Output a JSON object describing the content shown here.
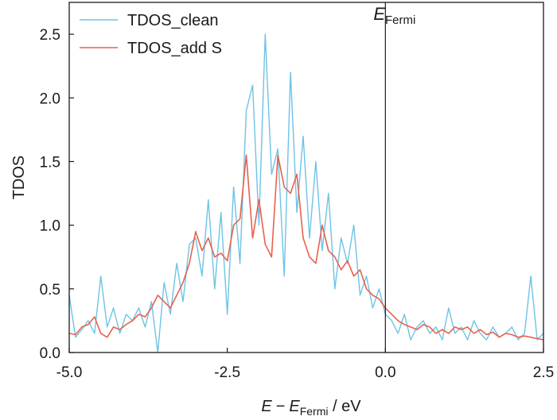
{
  "chart_data": {
    "type": "line",
    "title": "",
    "xlabel_main": "E",
    "xlabel_ref": "E",
    "xlabel_ref_sub": "Fermi",
    "xlabel_unit": " / eV",
    "xlabel_minus": "−",
    "ylabel": "TDOS",
    "xlim": [
      -5.0,
      2.5
    ],
    "ylim": [
      0.0,
      2.75
    ],
    "xticks": [
      -5.0,
      -2.5,
      0.0,
      2.5
    ],
    "xtick_labels": [
      "-5.0",
      "-2.5",
      "0.0",
      "2.5"
    ],
    "yticks": [
      0.0,
      0.5,
      1.0,
      1.5,
      2.0,
      2.5
    ],
    "ytick_labels": [
      "0.0",
      "0.5",
      "1.0",
      "1.5",
      "2.0",
      "2.5"
    ],
    "grid": false,
    "legend_position": "top-left",
    "annotation": {
      "text": "E",
      "sub": "Fermi",
      "x": 0.0,
      "y": 2.75
    },
    "series": [
      {
        "name": "TDOS_clean",
        "color": "#6ec3e6",
        "x": [
          -5.0,
          -4.9,
          -4.8,
          -4.7,
          -4.6,
          -4.5,
          -4.4,
          -4.3,
          -4.2,
          -4.1,
          -4.0,
          -3.9,
          -3.8,
          -3.7,
          -3.6,
          -3.5,
          -3.4,
          -3.3,
          -3.2,
          -3.1,
          -3.0,
          -2.9,
          -2.8,
          -2.7,
          -2.6,
          -2.5,
          -2.4,
          -2.3,
          -2.2,
          -2.1,
          -2.0,
          -1.9,
          -1.8,
          -1.7,
          -1.6,
          -1.5,
          -1.4,
          -1.3,
          -1.2,
          -1.1,
          -1.0,
          -0.9,
          -0.8,
          -0.7,
          -0.6,
          -0.5,
          -0.4,
          -0.3,
          -0.2,
          -0.1,
          0.0,
          0.1,
          0.2,
          0.3,
          0.4,
          0.5,
          0.6,
          0.7,
          0.8,
          0.9,
          1.0,
          1.1,
          1.2,
          1.3,
          1.4,
          1.5,
          1.6,
          1.7,
          1.8,
          1.9,
          2.0,
          2.1,
          2.2,
          2.3,
          2.4,
          2.5
        ],
        "y": [
          0.45,
          0.12,
          0.18,
          0.25,
          0.15,
          0.6,
          0.2,
          0.35,
          0.15,
          0.3,
          0.25,
          0.35,
          0.2,
          0.4,
          0.0,
          0.55,
          0.3,
          0.7,
          0.4,
          0.85,
          0.9,
          0.6,
          1.2,
          0.5,
          1.1,
          0.3,
          1.3,
          0.7,
          1.9,
          2.1,
          1.0,
          2.5,
          1.4,
          1.6,
          0.6,
          2.2,
          1.1,
          1.7,
          0.9,
          1.5,
          0.8,
          1.25,
          0.5,
          0.9,
          0.7,
          1.0,
          0.45,
          0.6,
          0.35,
          0.5,
          0.3,
          0.25,
          0.15,
          0.3,
          0.1,
          0.2,
          0.25,
          0.15,
          0.2,
          0.1,
          0.35,
          0.15,
          0.2,
          0.1,
          0.25,
          0.15,
          0.1,
          0.2,
          0.12,
          0.15,
          0.2,
          0.1,
          0.15,
          0.6,
          0.1,
          0.15
        ]
      },
      {
        "name": "TDOS_add S",
        "color": "#e8614d",
        "x": [
          -5.0,
          -4.9,
          -4.8,
          -4.7,
          -4.6,
          -4.5,
          -4.4,
          -4.3,
          -4.2,
          -4.1,
          -4.0,
          -3.9,
          -3.8,
          -3.7,
          -3.6,
          -3.5,
          -3.4,
          -3.3,
          -3.2,
          -3.1,
          -3.0,
          -2.9,
          -2.8,
          -2.7,
          -2.6,
          -2.5,
          -2.4,
          -2.3,
          -2.2,
          -2.1,
          -2.0,
          -1.9,
          -1.8,
          -1.7,
          -1.6,
          -1.5,
          -1.4,
          -1.3,
          -1.2,
          -1.1,
          -1.0,
          -0.9,
          -0.8,
          -0.7,
          -0.6,
          -0.5,
          -0.4,
          -0.3,
          -0.2,
          -0.1,
          0.0,
          0.1,
          0.2,
          0.3,
          0.4,
          0.5,
          0.6,
          0.7,
          0.8,
          0.9,
          1.0,
          1.1,
          1.2,
          1.3,
          1.4,
          1.5,
          1.6,
          1.7,
          1.8,
          1.9,
          2.0,
          2.1,
          2.2,
          2.3,
          2.4,
          2.5
        ],
        "y": [
          0.15,
          0.14,
          0.2,
          0.22,
          0.28,
          0.15,
          0.12,
          0.2,
          0.18,
          0.22,
          0.25,
          0.3,
          0.28,
          0.35,
          0.45,
          0.4,
          0.35,
          0.45,
          0.55,
          0.7,
          0.95,
          0.8,
          0.9,
          0.75,
          0.78,
          0.72,
          1.0,
          1.05,
          1.55,
          0.9,
          1.2,
          0.85,
          0.75,
          1.55,
          1.3,
          1.25,
          1.4,
          0.9,
          0.75,
          0.7,
          1.0,
          0.8,
          0.75,
          0.65,
          0.72,
          0.6,
          0.65,
          0.5,
          0.45,
          0.42,
          0.35,
          0.3,
          0.25,
          0.22,
          0.2,
          0.18,
          0.22,
          0.2,
          0.15,
          0.18,
          0.15,
          0.2,
          0.18,
          0.2,
          0.15,
          0.18,
          0.14,
          0.16,
          0.12,
          0.15,
          0.14,
          0.12,
          0.13,
          0.12,
          0.11,
          0.1
        ]
      }
    ]
  }
}
